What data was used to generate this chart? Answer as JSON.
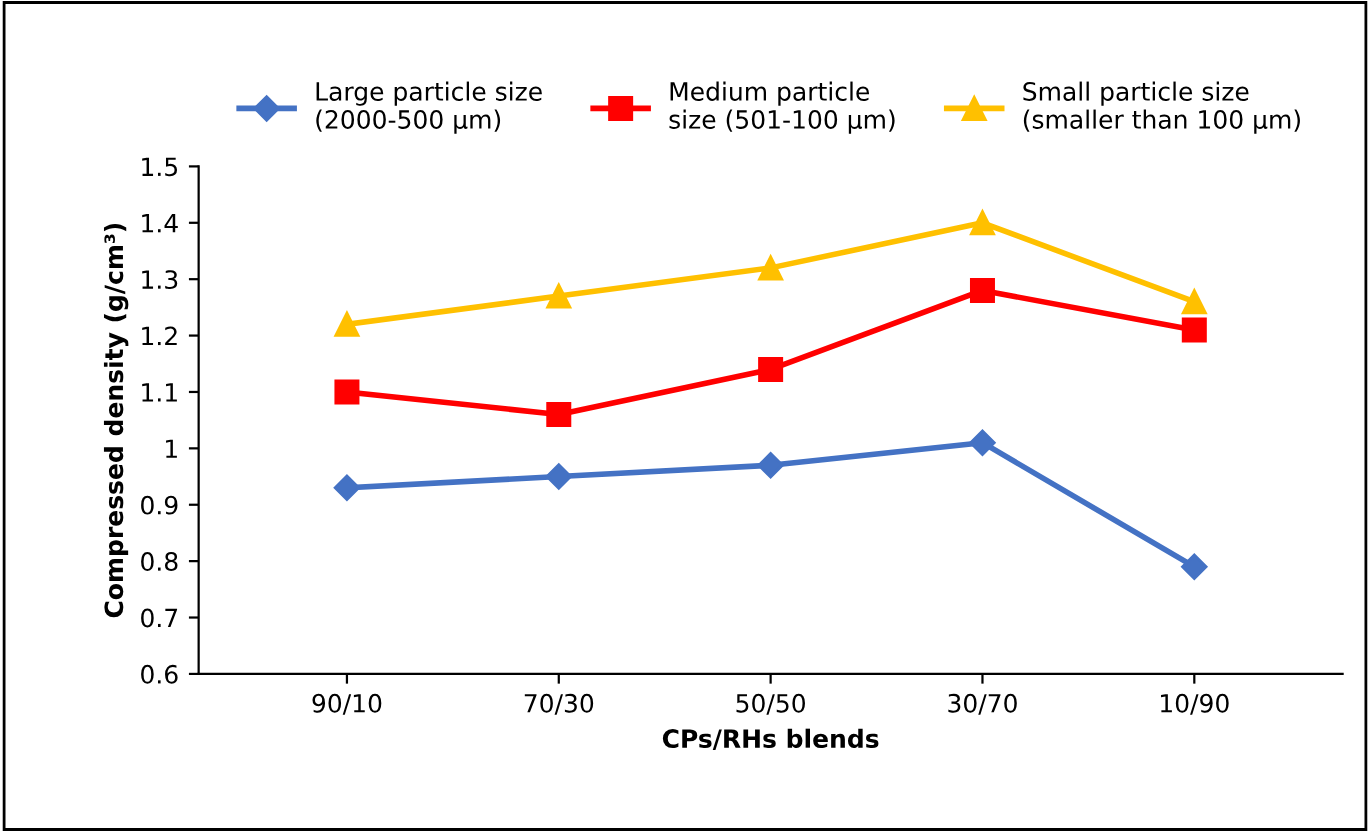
{
  "chart_data": {
    "type": "line",
    "xlabel": "CPs/RHs blends",
    "ylabel": "Compressed density (g/cm³)",
    "categories": [
      "90/10",
      "70/30",
      "50/50",
      "30/70",
      "10/90"
    ],
    "series": [
      {
        "name": "Large particle size\n(2000-500 µm)",
        "color": "#4472c4",
        "marker": "diamond",
        "values": [
          0.93,
          0.95,
          0.97,
          1.01,
          0.79
        ]
      },
      {
        "name": "Medium particle\nsize (501-100 µm)",
        "color": "#ff0000",
        "marker": "square",
        "values": [
          1.1,
          1.06,
          1.14,
          1.28,
          1.21
        ]
      },
      {
        "name": "Small particle size\n(smaller than 100 µm)",
        "color": "#ffc000",
        "marker": "triangle",
        "values": [
          1.22,
          1.27,
          1.32,
          1.4,
          1.26
        ]
      }
    ],
    "ylim": [
      0.6,
      1.5
    ],
    "yticks": [
      0.6,
      0.7,
      0.8,
      0.9,
      1,
      1.1,
      1.2,
      1.3,
      1.4,
      1.5
    ],
    "grid": false,
    "legend": "top",
    "line_style": "solid"
  }
}
